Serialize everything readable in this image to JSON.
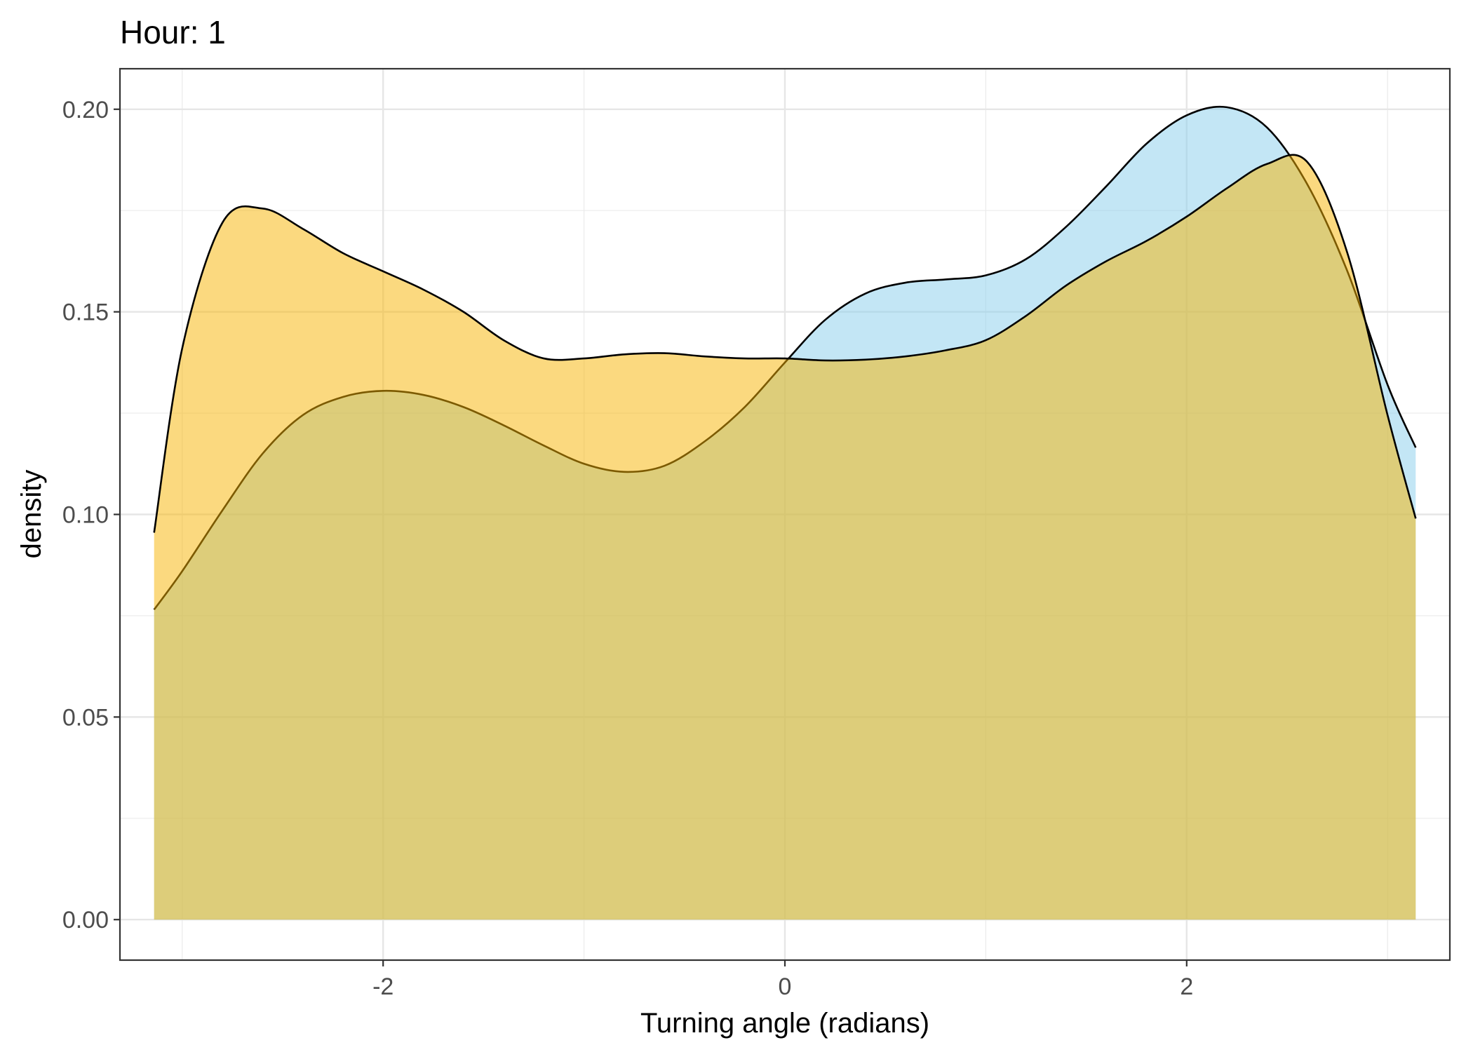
{
  "chart_data": {
    "type": "area",
    "title": "Hour: 1",
    "xlabel": "Turning angle (radians)",
    "ylabel": "density",
    "xlim": [
      -3.31,
      3.31
    ],
    "ylim": [
      -0.01,
      0.21
    ],
    "x_ticks": [
      -2,
      0,
      2
    ],
    "x_tick_labels": [
      "-2",
      "0",
      "2"
    ],
    "y_ticks": [
      0.0,
      0.05,
      0.1,
      0.15,
      0.2
    ],
    "y_tick_labels": [
      "0.00",
      "0.05",
      "0.10",
      "0.15",
      "0.20"
    ],
    "grid": true,
    "legend": "none",
    "series": [
      {
        "fill": "#87ceeb",
        "fill_opacity": 0.5,
        "x": [
          -3.14,
          -3.0,
          -2.8,
          -2.6,
          -2.4,
          -2.2,
          -2.0,
          -1.8,
          -1.6,
          -1.4,
          -1.2,
          -1.0,
          -0.8,
          -0.6,
          -0.4,
          -0.2,
          0.0,
          0.2,
          0.4,
          0.6,
          0.8,
          1.0,
          1.2,
          1.4,
          1.6,
          1.8,
          2.0,
          2.2,
          2.4,
          2.6,
          2.8,
          3.0,
          3.14
        ],
        "y": [
          0.0765,
          0.086,
          0.101,
          0.115,
          0.1245,
          0.129,
          0.1305,
          0.1295,
          0.1265,
          0.122,
          0.117,
          0.1125,
          0.1105,
          0.112,
          0.118,
          0.1265,
          0.1375,
          0.148,
          0.1545,
          0.1572,
          0.158,
          0.159,
          0.163,
          0.171,
          0.181,
          0.1915,
          0.1985,
          0.2005,
          0.1955,
          0.1815,
          0.16,
          0.132,
          0.1165
        ]
      },
      {
        "fill": "#f8b400",
        "fill_opacity": 0.5,
        "x": [
          -3.14,
          -3.0,
          -2.8,
          -2.6,
          -2.4,
          -2.2,
          -2.0,
          -1.8,
          -1.6,
          -1.4,
          -1.2,
          -1.0,
          -0.8,
          -0.6,
          -0.4,
          -0.2,
          0.0,
          0.2,
          0.4,
          0.6,
          0.8,
          1.0,
          1.2,
          1.4,
          1.6,
          1.8,
          2.0,
          2.2,
          2.4,
          2.6,
          2.8,
          3.0,
          3.14
        ],
        "y": [
          0.0955,
          0.141,
          0.172,
          0.1755,
          0.1705,
          0.1645,
          0.16,
          0.1555,
          0.15,
          0.143,
          0.1385,
          0.1385,
          0.1395,
          0.1398,
          0.139,
          0.1385,
          0.1385,
          0.138,
          0.1382,
          0.139,
          0.1405,
          0.143,
          0.149,
          0.1565,
          0.1625,
          0.1675,
          0.1735,
          0.1805,
          0.1865,
          0.187,
          0.1645,
          0.1245,
          0.099
        ]
      }
    ]
  }
}
